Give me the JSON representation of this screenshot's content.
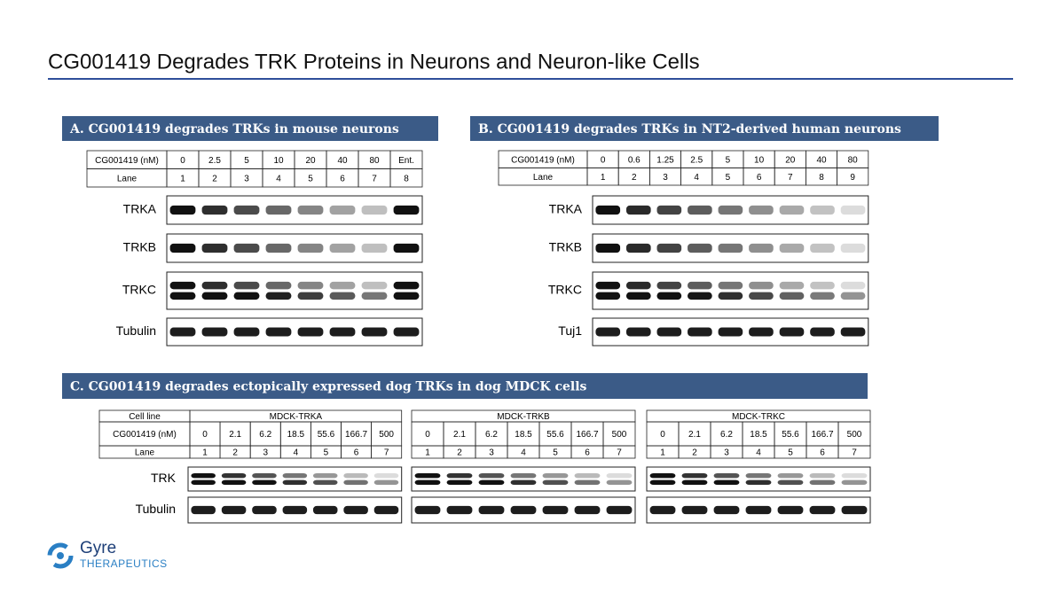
{
  "title": "CG001419 Degrades TRK Proteins in Neurons and Neuron-like Cells",
  "panels": [
    {
      "header": "A. CG001419 degrades TRKs in mouse neurons",
      "table": {
        "rows": [
          [
            "CG001419 (nM)",
            "0",
            "2.5",
            "5",
            "10",
            "20",
            "40",
            "80",
            "Ent."
          ],
          [
            "Lane",
            "1",
            "2",
            "3",
            "4",
            "5",
            "6",
            "7",
            "8"
          ]
        ]
      },
      "blots": [
        "TRKA",
        "TRKB",
        "TRKC",
        "Tubulin"
      ]
    },
    {
      "header": "B. CG001419 degrades TRKs in NT2-derived human neurons",
      "table": {
        "rows": [
          [
            "CG001419 (nM)",
            "0",
            "0.6",
            "1.25",
            "2.5",
            "5",
            "10",
            "20",
            "40",
            "80"
          ],
          [
            "Lane",
            "1",
            "2",
            "3",
            "4",
            "5",
            "6",
            "7",
            "8",
            "9"
          ]
        ]
      },
      "blots": [
        "TRKA",
        "TRKB",
        "TRKC",
        "Tuj1"
      ]
    },
    {
      "header": "C. CG001419 degrades ectopically expressed dog TRKs in dog MDCK cells",
      "row_labels": [
        "Cell line",
        "CG001419 (nM)",
        "Lane"
      ],
      "groups": [
        {
          "cell_line": "MDCK-TRKA",
          "doses": [
            "0",
            "2.1",
            "6.2",
            "18.5",
            "55.6",
            "166.7",
            "500"
          ],
          "lanes": [
            "1",
            "2",
            "3",
            "4",
            "5",
            "6",
            "7"
          ]
        },
        {
          "cell_line": "MDCK-TRKB",
          "doses": [
            "0",
            "2.1",
            "6.2",
            "18.5",
            "55.6",
            "166.7",
            "500"
          ],
          "lanes": [
            "1",
            "2",
            "3",
            "4",
            "5",
            "6",
            "7"
          ]
        },
        {
          "cell_line": "MDCK-TRKC",
          "doses": [
            "0",
            "2.1",
            "6.2",
            "18.5",
            "55.6",
            "166.7",
            "500"
          ],
          "lanes": [
            "1",
            "2",
            "3",
            "4",
            "5",
            "6",
            "7"
          ]
        }
      ],
      "blots": [
        "TRK",
        "Tubulin"
      ]
    }
  ],
  "logo": {
    "name": "Gyre",
    "subtitle": "THERAPEUTICS"
  }
}
